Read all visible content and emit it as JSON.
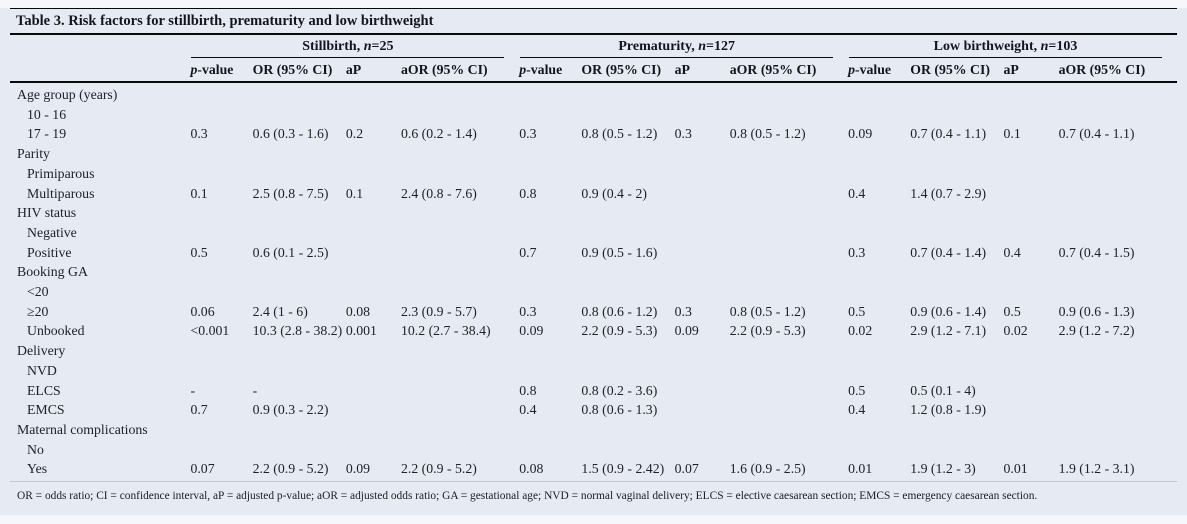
{
  "title": "Table 3. Risk factors for stillbirth, prematurity and low birthweight",
  "groups": [
    {
      "label_prefix": "Stillbirth, ",
      "n_italic": "n",
      "n_suffix": "=25"
    },
    {
      "label_prefix": "Prematurity, ",
      "n_italic": "n",
      "n_suffix": "=127"
    },
    {
      "label_prefix": "Low birthweight, ",
      "n_italic": "n",
      "n_suffix": "=103"
    }
  ],
  "subcolumns": {
    "p_italic": "p",
    "p_rest": "-value",
    "or": "OR (95% CI)",
    "ap": "aP",
    "aor": "aOR (95% CI)"
  },
  "rows": [
    {
      "label": "Age group (years)",
      "indent": false,
      "cells": [
        "",
        "",
        "",
        "",
        "",
        "",
        "",
        "",
        "",
        "",
        "",
        ""
      ]
    },
    {
      "label": "10 - 16",
      "indent": true,
      "cells": [
        "",
        "",
        "",
        "",
        "",
        "",
        "",
        "",
        "",
        "",
        "",
        ""
      ]
    },
    {
      "label": "17 - 19",
      "indent": true,
      "cells": [
        "0.3",
        "0.6 (0.3 - 1.6)",
        "0.2",
        "0.6 (0.2 - 1.4)",
        "0.3",
        "0.8 (0.5 - 1.2)",
        "0.3",
        "0.8 (0.5 - 1.2)",
        "0.09",
        "0.7 (0.4 - 1.1)",
        "0.1",
        "0.7 (0.4 - 1.1)"
      ]
    },
    {
      "label": "Parity",
      "indent": false,
      "cells": [
        "",
        "",
        "",
        "",
        "",
        "",
        "",
        "",
        "",
        "",
        "",
        ""
      ]
    },
    {
      "label": "Primiparous",
      "indent": true,
      "cells": [
        "",
        "",
        "",
        "",
        "",
        "",
        "",
        "",
        "",
        "",
        "",
        ""
      ]
    },
    {
      "label": "Multiparous",
      "indent": true,
      "cells": [
        "0.1",
        "2.5 (0.8 - 7.5)",
        "0.1",
        "2.4 (0.8 - 7.6)",
        "0.8",
        "0.9 (0.4 - 2)",
        "",
        "",
        "0.4",
        "1.4 (0.7 - 2.9)",
        "",
        ""
      ]
    },
    {
      "label": "HIV status",
      "indent": false,
      "cells": [
        "",
        "",
        "",
        "",
        "",
        "",
        "",
        "",
        "",
        "",
        "",
        ""
      ]
    },
    {
      "label": "Negative",
      "indent": true,
      "cells": [
        "",
        "",
        "",
        "",
        "",
        "",
        "",
        "",
        "",
        "",
        "",
        ""
      ]
    },
    {
      "label": "Positive",
      "indent": true,
      "cells": [
        "0.5",
        "0.6 (0.1 - 2.5)",
        "",
        "",
        "0.7",
        "0.9 (0.5 - 1.6)",
        "",
        "",
        "0.3",
        "0.7 (0.4 - 1.4)",
        "0.4",
        "0.7 (0.4 - 1.5)"
      ]
    },
    {
      "label": "Booking GA",
      "indent": false,
      "cells": [
        "",
        "",
        "",
        "",
        "",
        "",
        "",
        "",
        "",
        "",
        "",
        ""
      ]
    },
    {
      "label": "<20",
      "indent": true,
      "cells": [
        "",
        "",
        "",
        "",
        "",
        "",
        "",
        "",
        "",
        "",
        "",
        ""
      ]
    },
    {
      "label": "≥20",
      "indent": true,
      "cells": [
        "0.06",
        "2.4 (1 - 6)",
        "0.08",
        "2.3 (0.9 - 5.7)",
        "0.3",
        "0.8 (0.6 - 1.2)",
        "0.3",
        "0.8 (0.5 - 1.2)",
        "0.5",
        "0.9 (0.6 - 1.4)",
        "0.5",
        "0.9 (0.6 - 1.3)"
      ]
    },
    {
      "label": "Unbooked",
      "indent": true,
      "cells": [
        "<0.001",
        "10.3 (2.8 - 38.2)",
        "0.001",
        "10.2 (2.7 - 38.4)",
        "0.09",
        "2.2 (0.9 - 5.3)",
        "0.09",
        "2.2 (0.9 - 5.3)",
        "0.02",
        "2.9 (1.2 - 7.1)",
        "0.02",
        "2.9 (1.2 - 7.2)"
      ]
    },
    {
      "label": "Delivery",
      "indent": false,
      "cells": [
        "",
        "",
        "",
        "",
        "",
        "",
        "",
        "",
        "",
        "",
        "",
        ""
      ]
    },
    {
      "label": "NVD",
      "indent": true,
      "cells": [
        "",
        "",
        "",
        "",
        "",
        "",
        "",
        "",
        "",
        "",
        "",
        ""
      ]
    },
    {
      "label": "ELCS",
      "indent": true,
      "cells": [
        "-",
        "-",
        "",
        "",
        "0.8",
        "0.8 (0.2 - 3.6)",
        "",
        "",
        "0.5",
        "0.5 (0.1 - 4)",
        "",
        ""
      ]
    },
    {
      "label": "EMCS",
      "indent": true,
      "cells": [
        "0.7",
        "0.9 (0.3 - 2.2)",
        "",
        "",
        "0.4",
        "0.8 (0.6 - 1.3)",
        "",
        "",
        "0.4",
        "1.2 (0.8 - 1.9)",
        "",
        ""
      ]
    },
    {
      "label": "Maternal complications",
      "indent": false,
      "cells": [
        "",
        "",
        "",
        "",
        "",
        "",
        "",
        "",
        "",
        "",
        "",
        ""
      ]
    },
    {
      "label": "No",
      "indent": true,
      "cells": [
        "",
        "",
        "",
        "",
        "",
        "",
        "",
        "",
        "",
        "",
        "",
        ""
      ]
    },
    {
      "label": "Yes",
      "indent": true,
      "cells": [
        "0.07",
        "2.2 (0.9 - 5.2)",
        "0.09",
        "2.2 (0.9 - 5.2)",
        "0.08",
        "1.5 (0.9 - 2.42)",
        "0.07",
        "1.6 (0.9 - 2.5)",
        "0.01",
        "1.9 (1.2 - 3)",
        "0.01",
        "1.9 (1.2 - 3.1)"
      ]
    }
  ],
  "footnote": "OR = odds ratio; CI = confidence interval, aP = adjusted p-value; aOR = adjusted odds ratio; GA = gestational age; NVD = normal vaginal delivery; ELCS = elective caesarean section; EMCS = emergency caesarean section.",
  "colors": {
    "background": "#e6eaf2",
    "text": "#21212e",
    "rule": "#0a0a0a"
  }
}
